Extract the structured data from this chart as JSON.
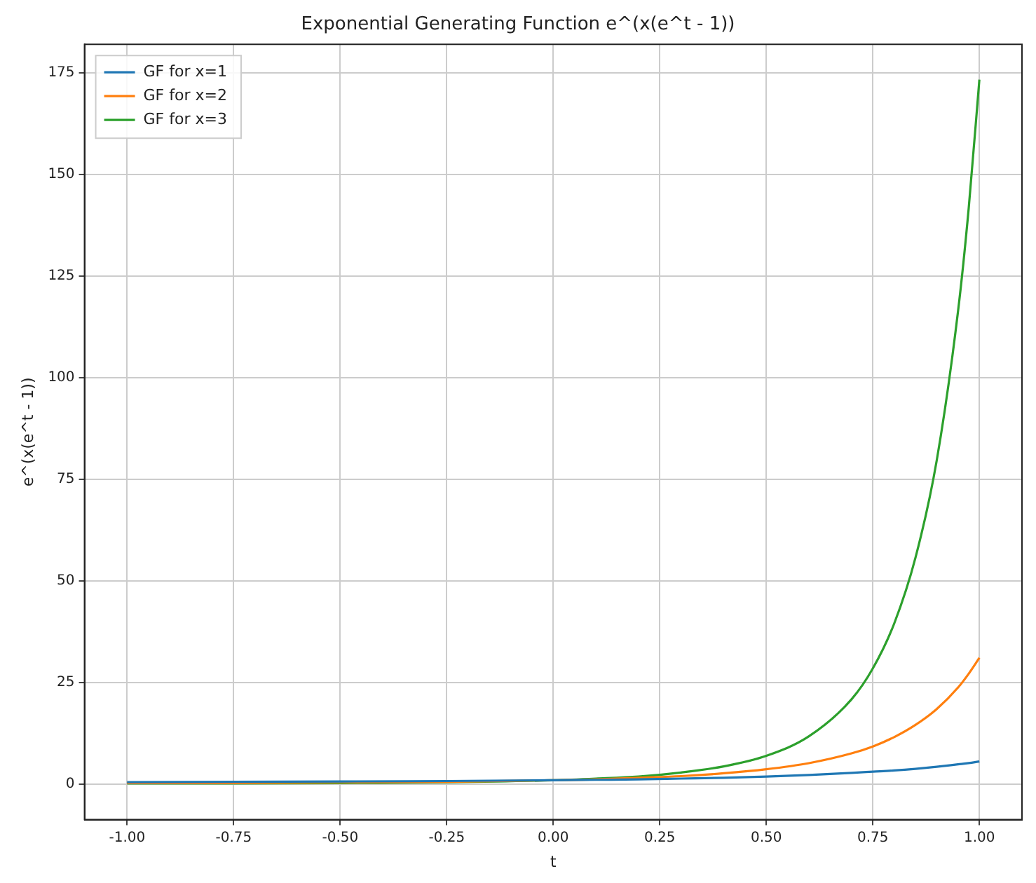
{
  "chart_data": {
    "type": "line",
    "title": "Exponential Generating Function e^(x(e^t - 1))",
    "xlabel": "t",
    "ylabel": "e^(x(e^t - 1))",
    "x": [
      -1,
      -0.75,
      -0.5,
      -0.25,
      0,
      0.1,
      0.2,
      0.3,
      0.4,
      0.5,
      0.6,
      0.7,
      0.75,
      0.8,
      0.85,
      0.9,
      0.95,
      0.975,
      1
    ],
    "series": [
      {
        "name": "GF for x=1",
        "color": "#1f77b4",
        "values": [
          0.5,
          0.6,
          0.7,
          0.8,
          1,
          1.1,
          1.2,
          1.4,
          1.6,
          1.9,
          2.3,
          2.8,
          3.1,
          3.4,
          3.8,
          4.3,
          4.9,
          5.2,
          5.6
        ]
      },
      {
        "name": "GF for x=2",
        "color": "#ff7f0e",
        "values": [
          0.3,
          0.3,
          0.5,
          0.6,
          1,
          1.2,
          1.6,
          2,
          2.7,
          3.7,
          5.2,
          7.6,
          9.3,
          11.6,
          14.6,
          18.5,
          23.8,
          27.2,
          31.1
        ]
      },
      {
        "name": "GF for x=3",
        "color": "#2ca02c",
        "values": [
          0.2,
          0.2,
          0.3,
          0.5,
          1,
          1.4,
          1.9,
          2.9,
          4.4,
          7,
          11.8,
          20.9,
          28.5,
          39.5,
          55.7,
          79.7,
          116.4,
          141.7,
          173.3
        ]
      }
    ],
    "xlim": [
      -1.1,
      1.1
    ],
    "ylim": [
      -8.7,
      182
    ],
    "xticks": [
      {
        "value": -1,
        "label": "-1.00"
      },
      {
        "value": -0.75,
        "label": "-0.75"
      },
      {
        "value": -0.5,
        "label": "-0.50"
      },
      {
        "value": -0.25,
        "label": "-0.25"
      },
      {
        "value": 0,
        "label": "0.00"
      },
      {
        "value": 0.25,
        "label": "0.25"
      },
      {
        "value": 0.5,
        "label": "0.50"
      },
      {
        "value": 0.75,
        "label": "0.75"
      },
      {
        "value": 1,
        "label": "1.00"
      }
    ],
    "yticks": [
      0,
      25,
      50,
      75,
      100,
      125,
      150,
      175
    ],
    "grid": true,
    "legend": "top left",
    "marker": "none",
    "line_style": "solid"
  }
}
